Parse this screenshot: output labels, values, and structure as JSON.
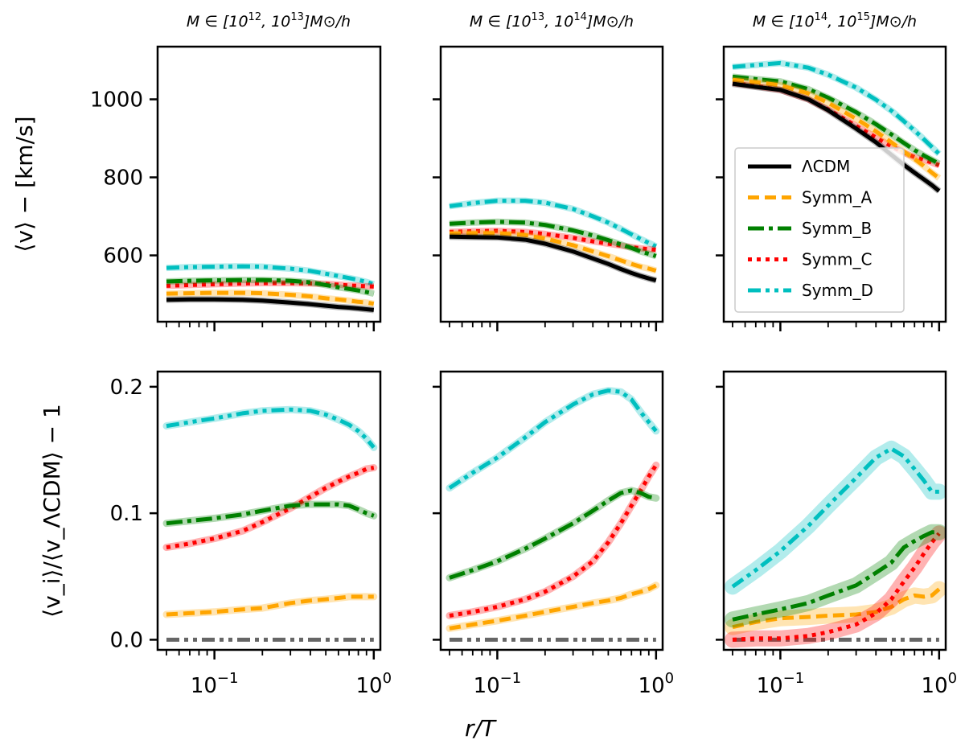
{
  "chart_data": {
    "type": "line",
    "figure": {
      "xlabel": "r/T",
      "ylabel_top": "⟨v⟩ − [km/s]",
      "ylabel_bottom": "⟨v_i⟩/⟨v_ΛCDM⟩ − 1",
      "xscale": "log",
      "xlim": [
        0.044,
        1.1
      ],
      "x_tick_labels": [
        {
          "base": "10",
          "exp": "−1",
          "value": 0.1
        },
        {
          "base": "10",
          "exp": "0",
          "value": 1.0
        }
      ],
      "top_ylim": [
        430,
        1135
      ],
      "top_y_ticks": [
        600,
        800,
        1000
      ],
      "bottom_ylim": [
        -0.008,
        0.212
      ],
      "bottom_y_ticks": [
        0.0,
        0.1,
        0.2
      ],
      "bottom_y_tick_labels": [
        "0.0",
        "0.1",
        "0.2"
      ]
    },
    "legend": {
      "placement": "center-right of top-right panel",
      "entries": [
        "ΛCDM",
        "Symm_A",
        "Symm_B",
        "Symm_C",
        "Symm_D"
      ]
    },
    "series_styles": [
      {
        "name": "ΛCDM",
        "color": "#000000",
        "dash": "solid"
      },
      {
        "name": "Symm_A",
        "color": "#ffa500",
        "dash": "dashed"
      },
      {
        "name": "Symm_B",
        "color": "#008000",
        "dash": "dashdot"
      },
      {
        "name": "Symm_C",
        "color": "#ff0000",
        "dash": "dotted"
      },
      {
        "name": "Symm_D",
        "color": "#00bfbf",
        "dash": "dashdotdot"
      }
    ],
    "reference_line": {
      "y": 0.0,
      "color": "#666666",
      "dash": "dashdotdot"
    },
    "x": [
      0.05,
      0.07,
      0.1,
      0.15,
      0.2,
      0.3,
      0.4,
      0.5,
      0.6,
      0.7,
      0.8,
      0.9,
      1.0
    ],
    "panels": [
      {
        "title": {
          "prefix": "M ∈ [10",
          "exp1": "12",
          "mid": ", 10",
          "exp2": "13",
          "suffix": "]M⊙/h"
        },
        "top_series": [
          {
            "name": "ΛCDM",
            "values": [
              486,
              487,
              487,
              486,
              484,
              479,
              475,
              471,
              468,
              466,
              464,
              462,
              460
            ]
          },
          {
            "name": "Symm_A",
            "values": [
              502,
              503,
              504,
              504,
              503,
              499,
              495,
              490,
              487,
              484,
              481,
              479,
              476
            ]
          },
          {
            "name": "Symm_B",
            "values": [
              533,
              535,
              536,
              537,
              537,
              535,
              531,
              524,
              518,
              514,
              510,
              506,
              502
            ]
          },
          {
            "name": "Symm_C",
            "values": [
              522,
              524,
              526,
              528,
              529,
              529,
              528,
              527,
              525,
              523,
              522,
              521,
              520
            ]
          },
          {
            "name": "Symm_D",
            "values": [
              568,
              570,
              571,
              572,
              571,
              566,
              560,
              553,
              547,
              542,
              537,
              532,
              526
            ]
          }
        ],
        "bottom_series": [
          {
            "name": "Symm_A",
            "values": [
              0.02,
              0.021,
              0.022,
              0.024,
              0.025,
              0.029,
              0.031,
              0.032,
              0.033,
              0.034,
              0.034,
              0.034,
              0.034
            ]
          },
          {
            "name": "Symm_B",
            "values": [
              0.092,
              0.094,
              0.096,
              0.099,
              0.102,
              0.106,
              0.107,
              0.107,
              0.107,
              0.106,
              0.103,
              0.1,
              0.098
            ]
          },
          {
            "name": "Symm_C",
            "values": [
              0.073,
              0.076,
              0.08,
              0.086,
              0.093,
              0.104,
              0.113,
              0.12,
              0.125,
              0.129,
              0.132,
              0.135,
              0.136
            ]
          },
          {
            "name": "Symm_D",
            "values": [
              0.169,
              0.172,
              0.175,
              0.179,
              0.181,
              0.182,
              0.181,
              0.178,
              0.174,
              0.17,
              0.165,
              0.159,
              0.152
            ]
          }
        ],
        "bands": false
      },
      {
        "title": {
          "prefix": "M ∈ [10",
          "exp1": "13",
          "mid": ", 10",
          "exp2": "14",
          "suffix": "]M⊙/h"
        },
        "top_series": [
          {
            "name": "ΛCDM",
            "values": [
              648,
              647,
              646,
              640,
              630,
              610,
              592,
              578,
              565,
              555,
              547,
              541,
              536
            ]
          },
          {
            "name": "Symm_A",
            "values": [
              656,
              657,
              657,
              652,
              643,
              626,
              610,
              598,
              587,
              578,
              571,
              566,
              561
            ]
          },
          {
            "name": "Symm_B",
            "values": [
              681,
              684,
              686,
              684,
              678,
              664,
              651,
              639,
              628,
              619,
              610,
              604,
              598
            ]
          },
          {
            "name": "Symm_C",
            "values": [
              660,
              662,
              663,
              660,
              655,
              645,
              636,
              630,
              625,
              621,
              618,
              616,
              614
            ]
          },
          {
            "name": "Symm_D",
            "values": [
              726,
              734,
              740,
              740,
              735,
              719,
              700,
              684,
              668,
              654,
              642,
              632,
              623
            ]
          }
        ],
        "bottom_series": [
          {
            "name": "Symm_A",
            "values": [
              0.009,
              0.012,
              0.015,
              0.019,
              0.022,
              0.026,
              0.029,
              0.031,
              0.033,
              0.036,
              0.038,
              0.04,
              0.043
            ]
          },
          {
            "name": "Symm_B",
            "values": [
              0.049,
              0.055,
              0.062,
              0.072,
              0.08,
              0.092,
              0.102,
              0.11,
              0.116,
              0.118,
              0.116,
              0.113,
              0.112
            ]
          },
          {
            "name": "Symm_C",
            "values": [
              0.019,
              0.022,
              0.026,
              0.032,
              0.038,
              0.05,
              0.062,
              0.077,
              0.092,
              0.106,
              0.118,
              0.129,
              0.138
            ]
          },
          {
            "name": "Symm_D",
            "values": [
              0.12,
              0.132,
              0.144,
              0.16,
              0.172,
              0.186,
              0.194,
              0.197,
              0.196,
              0.19,
              0.18,
              0.172,
              0.165
            ]
          }
        ],
        "bands": false
      },
      {
        "title": {
          "prefix": "M ∈ [10",
          "exp1": "14",
          "mid": ", 10",
          "exp2": "15",
          "suffix": "]M⊙/h"
        },
        "top_series": [
          {
            "name": "ΛCDM",
            "values": [
              1040,
              1032,
              1024,
              1000,
              972,
              925,
              890,
              858,
              832,
              812,
              795,
              780,
              765
            ]
          },
          {
            "name": "Symm_A",
            "values": [
              1050,
              1044,
              1036,
              1015,
              991,
              950,
              918,
              890,
              866,
              847,
              829,
              812,
              798
            ]
          },
          {
            "name": "Symm_B",
            "values": [
              1058,
              1052,
              1046,
              1026,
              1004,
              967,
              936,
              910,
              888,
              870,
              856,
              845,
              835
            ]
          },
          {
            "name": "Symm_C",
            "values": [
              1042,
              1034,
              1024,
              1000,
              974,
              932,
              902,
              880,
              863,
              852,
              845,
              838,
              831
            ]
          },
          {
            "name": "Symm_D",
            "values": [
              1083,
              1088,
              1093,
              1081,
              1063,
              1030,
              999,
              971,
              944,
              920,
              898,
              878,
              860
            ]
          }
        ],
        "bottom_series": [
          {
            "name": "Symm_A",
            "values": [
              0.01,
              0.014,
              0.017,
              0.018,
              0.019,
              0.02,
              0.022,
              0.026,
              0.032,
              0.035,
              0.034,
              0.035,
              0.04
            ]
          },
          {
            "name": "Symm_B",
            "values": [
              0.016,
              0.02,
              0.024,
              0.029,
              0.035,
              0.043,
              0.053,
              0.061,
              0.073,
              0.078,
              0.082,
              0.085,
              0.085
            ]
          },
          {
            "name": "Symm_C",
            "values": [
              0.0,
              0.001,
              0.001,
              0.003,
              0.006,
              0.012,
              0.021,
              0.032,
              0.046,
              0.057,
              0.068,
              0.077,
              0.084
            ]
          },
          {
            "name": "Symm_D",
            "values": [
              0.042,
              0.055,
              0.07,
              0.09,
              0.106,
              0.128,
              0.144,
              0.151,
              0.145,
              0.135,
              0.126,
              0.117,
              0.117
            ]
          }
        ],
        "bands": true
      }
    ]
  }
}
